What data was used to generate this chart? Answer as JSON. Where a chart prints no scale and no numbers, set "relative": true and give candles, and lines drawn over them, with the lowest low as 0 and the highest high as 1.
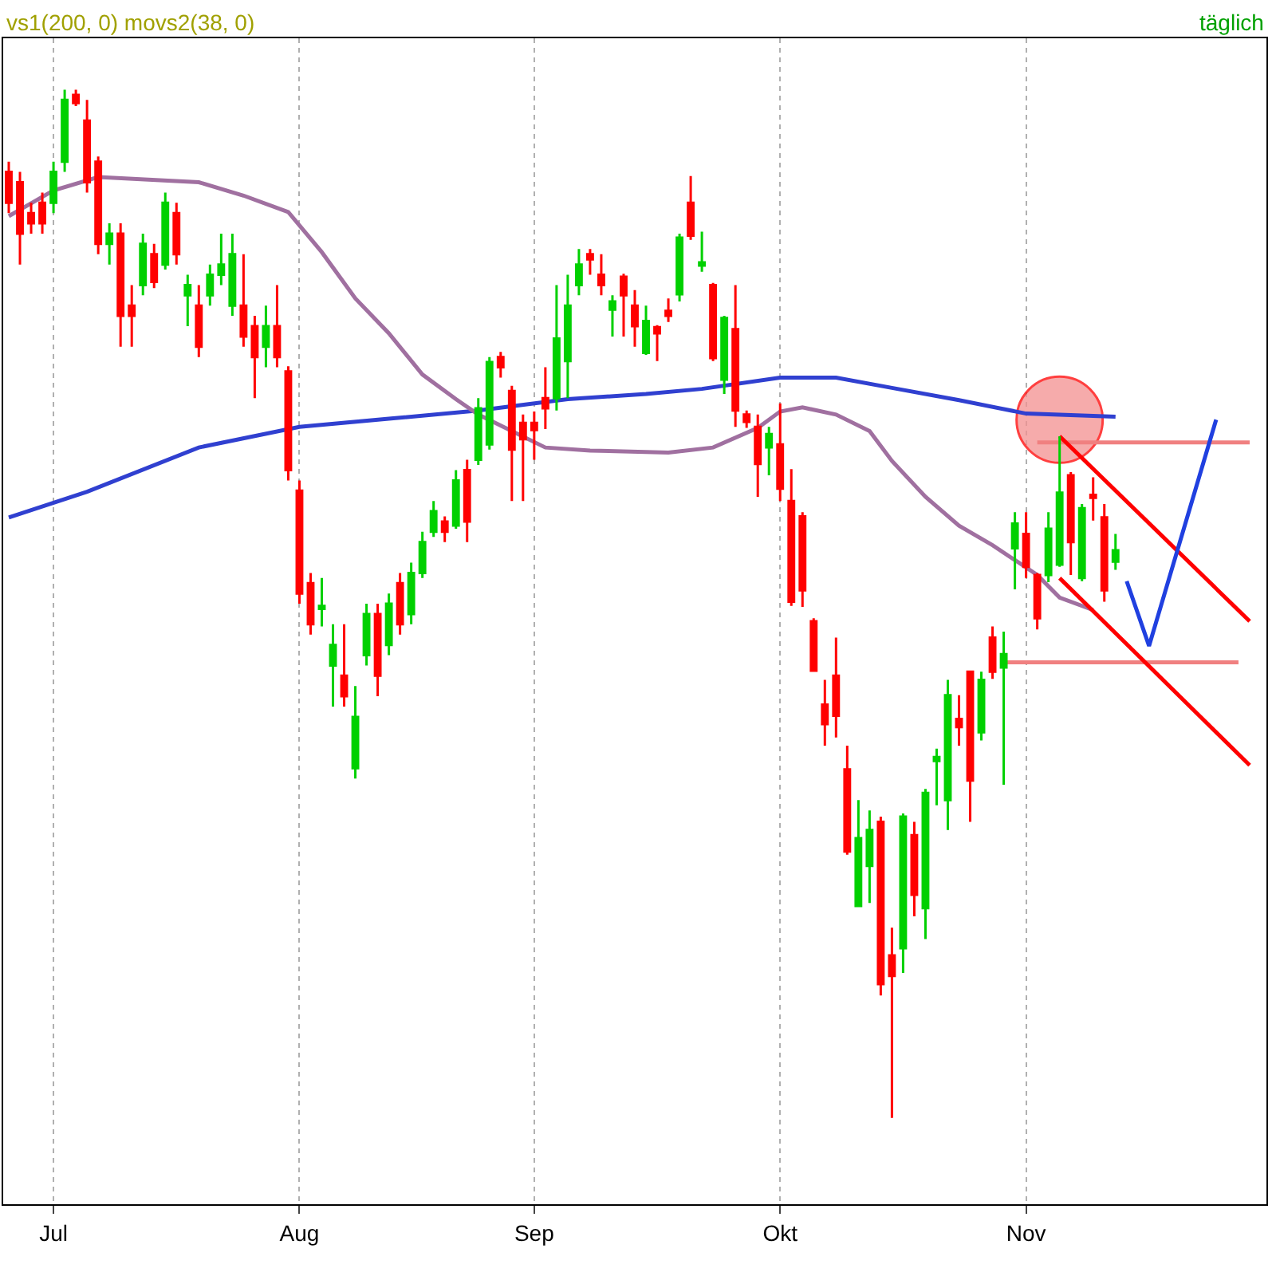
{
  "chart_data": {
    "type": "candlestick",
    "relative": true,
    "annotations": [
      "vs1(200, 0) movs2(38, 0)",
      "täglich"
    ],
    "categories": [
      null,
      null,
      null,
      null,
      "Jul",
      null,
      null,
      null,
      null,
      null,
      null,
      null,
      null,
      null,
      null,
      null,
      null,
      null,
      null,
      null,
      null,
      null,
      null,
      null,
      null,
      null,
      "Aug",
      null,
      null,
      null,
      null,
      null,
      null,
      null,
      null,
      null,
      null,
      null,
      null,
      null,
      null,
      null,
      null,
      null,
      null,
      null,
      null,
      "Sep",
      null,
      null,
      null,
      null,
      null,
      null,
      null,
      null,
      null,
      null,
      null,
      null,
      null,
      null,
      null,
      null,
      null,
      null,
      null,
      null,
      null,
      "Okt",
      null,
      null,
      null,
      null,
      null,
      null,
      null,
      null,
      null,
      null,
      null,
      null,
      null,
      null,
      null,
      null,
      null,
      null,
      null,
      null,
      null,
      "Nov",
      null,
      null,
      null,
      null,
      null,
      null,
      null,
      null,
      null,
      null,
      null,
      null,
      null,
      null,
      null,
      null,
      null,
      null,
      null,
      null,
      null
    ],
    "grid": "x",
    "series": [
      {
        "ohlc": [
          [
            0.92,
            0.93,
            0.88,
            0.89
          ],
          [
            0.91,
            0.92,
            0.83,
            0.86
          ],
          [
            0.88,
            0.89,
            0.86,
            0.87
          ],
          [
            0.89,
            0.9,
            0.86,
            0.87
          ],
          [
            0.89,
            0.93,
            0.88,
            0.92
          ],
          [
            0.93,
            1,
            0.92,
            0.99
          ],
          [
            0.995,
            1,
            0.984,
            0.987
          ],
          [
            0.97,
            0.99,
            0.9,
            0.91
          ],
          [
            0.93,
            0.935,
            0.84,
            0.85
          ],
          [
            0.85,
            0.87,
            0.83,
            0.86
          ],
          [
            0.86,
            0.87,
            0.75,
            0.78
          ],
          [
            0.79,
            0.81,
            0.75,
            0.78
          ],
          [
            0.81,
            0.86,
            0.8,
            0.85
          ],
          [
            0.84,
            0.85,
            0.807,
            0.813
          ],
          [
            0.83,
            0.9,
            0.825,
            0.89
          ],
          [
            0.88,
            0.89,
            0.83,
            0.84
          ],
          [
            0.8,
            0.82,
            0.77,
            0.81
          ],
          [
            0.79,
            0.81,
            0.74,
            0.75
          ],
          [
            0.8,
            0.83,
            0.79,
            0.82
          ],
          [
            0.82,
            0.86,
            0.81,
            0.83
          ],
          [
            0.79,
            0.86,
            0.78,
            0.84
          ],
          [
            0.79,
            0.84,
            0.75,
            0.76
          ],
          [
            0.77,
            0.78,
            0.7,
            0.74
          ],
          [
            0.75,
            0.79,
            0.73,
            0.77
          ],
          [
            0.77,
            0.81,
            0.73,
            0.74
          ],
          [
            0.726,
            0.731,
            0.62,
            0.63
          ],
          [
            0.61,
            0.62,
            0.5,
            0.51
          ],
          [
            0.52,
            0.53,
            0.47,
            0.48
          ],
          [
            0.495,
            0.525,
            0.478,
            0.498
          ],
          [
            0.44,
            0.48,
            0.4,
            0.46
          ],
          [
            0.43,
            0.48,
            0.4,
            0.41
          ],
          [
            0.34,
            0.42,
            0.33,
            0.39
          ],
          [
            0.45,
            0.5,
            0.44,
            0.49
          ],
          [
            0.49,
            0.5,
            0.41,
            0.43
          ],
          [
            0.46,
            0.51,
            0.45,
            0.5
          ],
          [
            0.52,
            0.53,
            0.47,
            0.48
          ],
          [
            0.49,
            0.54,
            0.48,
            0.53
          ],
          [
            0.53,
            0.57,
            0.525,
            0.56
          ],
          [
            0.57,
            0.6,
            0.565,
            0.59
          ],
          [
            0.58,
            0.585,
            0.56,
            0.57
          ],
          [
            0.576,
            0.63,
            0.573,
            0.62
          ],
          [
            0.63,
            0.64,
            0.56,
            0.58
          ],
          [
            0.64,
            0.7,
            0.635,
            0.69
          ],
          [
            0.655,
            0.74,
            0.65,
            0.735
          ],
          [
            0.74,
            0.745,
            0.72,
            0.73
          ],
          [
            0.707,
            0.712,
            0.6,
            0.65
          ],
          [
            0.676,
            0.684,
            0.6,
            0.66
          ],
          [
            0.676,
            0.687,
            0.64,
            0.669
          ],
          [
            0.7,
            0.73,
            0.67,
            0.69
          ],
          [
            0.7,
            0.81,
            0.688,
            0.758
          ],
          [
            0.736,
            0.82,
            0.7,
            0.79
          ],
          [
            0.81,
            0.845,
            0.8,
            0.83
          ],
          [
            0.84,
            0.845,
            0.82,
            0.835
          ],
          [
            0.82,
            0.84,
            0.8,
            0.81
          ],
          [
            0.786,
            0.8,
            0.76,
            0.794
          ],
          [
            0.818,
            0.821,
            0.76,
            0.8
          ],
          [
            0.79,
            0.805,
            0.75,
            0.77
          ],
          [
            0.744,
            0.79,
            0.742,
            0.775
          ],
          [
            0.769,
            0.771,
            0.736,
            0.763
          ],
          [
            0.785,
            0.797,
            0.774,
            0.78
          ],
          [
            0.801,
            0.86,
            0.794,
            0.856
          ],
          [
            0.89,
            0.916,
            0.854,
            0.858
          ],
          [
            0.829,
            0.862,
            0.823,
            0.832
          ],
          [
            0.81,
            0.812,
            0.736,
            0.739
          ],
          [
            0.718,
            0.78,
            0.704,
            0.778
          ],
          [
            0.767,
            0.81,
            0.672,
            0.688
          ],
          [
            0.684,
            0.688,
            0.671,
            0.677
          ],
          [
            0.672,
            0.684,
            0.604,
            0.636
          ],
          [
            0.652,
            0.672,
            0.625,
            0.665
          ],
          [
            0.655,
            0.695,
            0.6,
            0.612
          ],
          [
            0.6,
            0.631,
            0.498,
            0.502
          ],
          [
            0.585,
            0.589,
            0.497,
            0.513
          ],
          [
            0.483,
            0.486,
            0.434,
            0.435
          ],
          [
            0.402,
            0.426,
            0.362,
            0.383
          ],
          [
            0.43,
            0.467,
            0.37,
            0.391
          ],
          [
            0.339,
            0.362,
            0.256,
            0.259
          ],
          [
            0.206,
            0.309,
            0.206,
            0.272
          ],
          [
            0.245,
            0.299,
            0.209,
            0.28
          ],
          [
            0.288,
            0.293,
            0.119,
            0.13
          ],
          [
            0.158,
            0.185,
            0,
            0.138
          ],
          [
            0.165,
            0.296,
            0.141,
            0.293
          ],
          [
            0.275,
            0.288,
            0.196,
            0.217
          ],
          [
            0.204,
            0.32,
            0.174,
            0.316
          ],
          [
            0.347,
            0.359,
            0.304,
            0.351
          ],
          [
            0.309,
            0.426,
            0.28,
            0.411
          ],
          [
            0.388,
            0.411,
            0.362,
            0.38
          ],
          [
            0.434,
            0.435,
            0.288,
            0.328
          ],
          [
            0.375,
            0.434,
            0.367,
            0.426
          ],
          [
            0.467,
            0.478,
            0.427,
            0.434
          ],
          [
            0.438,
            0.473,
            0.324,
            0.451
          ],
          [
            0.554,
            0.589,
            0.514,
            0.578
          ],
          [
            0.568,
            0.589,
            0.525,
            0.536
          ],
          [
            0.528,
            0.53,
            0.475,
            0.486
          ],
          [
            0.528,
            0.589,
            0.521,
            0.573
          ],
          [
            0.538,
            0.663,
            0.536,
            0.608
          ],
          [
            0.625,
            0.628,
            0.528,
            0.56
          ],
          [
            0.525,
            0.597,
            0.522,
            0.593
          ],
          [
            0.606,
            0.623,
            0.581,
            0.603
          ],
          [
            0.584,
            0.597,
            0.502,
            0.513
          ],
          [
            0.541,
            0.568,
            0.533,
            0.552
          ],
          null,
          null,
          null,
          null,
          null,
          null,
          null,
          null,
          null,
          null,
          null,
          null,
          null
        ],
        "colors": [
          "#ff0000",
          "#ff0000",
          "#ff0000",
          "#ff0000",
          "#00d000",
          "#00d000",
          "#ff0000",
          "#ff0000",
          "#ff0000",
          "#00d000",
          "#ff0000",
          "#ff0000",
          "#00d000",
          "#ff0000",
          "#00d000",
          "#ff0000",
          "#00d000",
          "#ff0000",
          "#00d000",
          "#00d000",
          "#00d000",
          "#ff0000",
          "#ff0000",
          "#00d000",
          "#ff0000",
          "#ff0000",
          "#ff0000",
          "#ff0000",
          "#00d000",
          "#00d000",
          "#ff0000",
          "#00d000",
          "#00d000",
          "#ff0000",
          "#00d000",
          "#ff0000",
          "#00d000",
          "#00d000",
          "#00d000",
          "#ff0000",
          "#00d000",
          "#ff0000",
          "#00d000",
          "#00d000",
          "#ff0000",
          "#ff0000",
          "#ff0000",
          "#ff0000",
          "#ff0000",
          "#00d000",
          "#00d000",
          "#00d000",
          "#ff0000",
          "#ff0000",
          "#00d000",
          "#ff0000",
          "#ff0000",
          "#00d000",
          "#ff0000",
          "#ff0000",
          "#00d000",
          "#ff0000",
          "#00d000",
          "#ff0000",
          "#00d000",
          "#ff0000",
          "#ff0000",
          "#ff0000",
          "#00d000",
          "#ff0000",
          "#ff0000",
          "#ff0000",
          "#ff0000",
          "#ff0000",
          "#ff0000",
          "#ff0000",
          "#00d000",
          "#00d000",
          "#ff0000",
          "#ff0000",
          "#00d000",
          "#ff0000",
          "#00d000",
          "#00d000",
          "#00d000",
          "#ff0000",
          "#ff0000",
          "#00d000",
          "#ff0000",
          "#00d000",
          "#00d000",
          "#ff0000",
          "#ff0000",
          "#00d000",
          "#00d000",
          "#ff0000",
          "#00d000",
          "#ff0000",
          "#ff0000",
          "#00d000",
          null,
          null,
          null,
          null,
          null,
          null,
          null,
          null,
          null,
          null,
          null,
          null,
          null
        ]
      },
      {
        "type": "line",
        "color": "#3040d0",
        "values": [
          0.584,
          null,
          null,
          null,
          null,
          null,
          null,
          0.609,
          null,
          null,
          null,
          null,
          null,
          null,
          null,
          null,
          null,
          0.652,
          null,
          null,
          null,
          null,
          null,
          null,
          null,
          null,
          0.672,
          null,
          null,
          null,
          null,
          null,
          null,
          null,
          0.68,
          null,
          null,
          null,
          null,
          null,
          null,
          null,
          0.688,
          null,
          null,
          null,
          null,
          null,
          null,
          null,
          0.699,
          null,
          null,
          null,
          null,
          null,
          null,
          0.704,
          null,
          null,
          null,
          null,
          0.709,
          null,
          null,
          null,
          null,
          null,
          null,
          0.72,
          null,
          null,
          null,
          null,
          0.72,
          null,
          null,
          null,
          null,
          0.71,
          null,
          null,
          null,
          null,
          null,
          0.698,
          null,
          null,
          null,
          null,
          null,
          0.685,
          null,
          null,
          null,
          null,
          null,
          null,
          null,
          0.682,
          null,
          null,
          null,
          null,
          null,
          null,
          null,
          null,
          null,
          null,
          null,
          null,
          null
        ]
      },
      {
        "type": "line",
        "color": "#a070a0",
        "values": [
          0.877,
          null,
          null,
          null,
          0.902,
          null,
          null,
          null,
          0.915,
          null,
          null,
          null,
          null,
          null,
          null,
          null,
          null,
          0.91,
          null,
          null,
          null,
          0.897,
          null,
          null,
          null,
          0.881,
          null,
          null,
          0.842,
          null,
          null,
          0.797,
          null,
          null,
          0.763,
          null,
          null,
          0.723,
          null,
          null,
          0.699,
          null,
          0.684,
          null,
          null,
          0.668,
          null,
          null,
          0.652,
          null,
          null,
          null,
          0.649,
          null,
          null,
          null,
          null,
          null,
          null,
          0.647,
          null,
          null,
          null,
          0.652,
          null,
          null,
          null,
          0.671,
          null,
          0.687,
          null,
          0.691,
          null,
          null,
          0.684,
          null,
          null,
          0.668,
          null,
          0.639,
          null,
          null,
          0.604,
          null,
          null,
          0.576,
          null,
          null,
          0.557,
          null,
          null,
          null,
          0.528,
          null,
          0.506,
          null,
          null,
          0.494,
          null,
          null,
          null,
          null,
          null,
          null,
          null,
          null,
          null,
          null,
          null,
          null,
          null,
          null,
          null
        ]
      },
      {
        "type": "scatter",
        "marker": "circle",
        "color": "#f39090",
        "values": [
          null,
          null,
          null,
          null,
          null,
          null,
          null,
          null,
          null,
          null,
          null,
          null,
          null,
          null,
          null,
          null,
          null,
          null,
          null,
          null,
          null,
          null,
          null,
          null,
          null,
          null,
          null,
          null,
          null,
          null,
          null,
          null,
          null,
          null,
          null,
          null,
          null,
          null,
          null,
          null,
          null,
          null,
          null,
          null,
          null,
          null,
          null,
          null,
          null,
          null,
          null,
          null,
          null,
          null,
          null,
          null,
          null,
          null,
          null,
          null,
          null,
          null,
          null,
          null,
          null,
          null,
          null,
          null,
          null,
          null,
          null,
          null,
          null,
          null,
          null,
          null,
          null,
          null,
          null,
          null,
          null,
          null,
          null,
          null,
          null,
          null,
          null,
          null,
          null,
          null,
          null,
          null,
          null,
          null,
          0.679,
          null,
          null,
          null,
          null,
          null,
          null,
          null,
          null,
          null,
          null,
          null,
          null,
          null,
          null,
          null,
          null,
          null,
          null
        ]
      },
      {
        "type": "line",
        "color": "#f08080",
        "values": [
          null,
          null,
          null,
          null,
          null,
          null,
          null,
          null,
          null,
          null,
          null,
          null,
          null,
          null,
          null,
          null,
          null,
          null,
          null,
          null,
          null,
          null,
          null,
          null,
          null,
          null,
          null,
          null,
          null,
          null,
          null,
          null,
          null,
          null,
          null,
          null,
          null,
          null,
          null,
          null,
          null,
          null,
          null,
          null,
          null,
          null,
          null,
          null,
          null,
          null,
          null,
          null,
          null,
          null,
          null,
          null,
          null,
          null,
          null,
          null,
          null,
          null,
          null,
          null,
          null,
          null,
          null,
          null,
          null,
          null,
          null,
          null,
          null,
          null,
          null,
          null,
          null,
          null,
          null,
          null,
          null,
          null,
          null,
          null,
          null,
          null,
          null,
          null,
          null,
          null,
          null,
          null,
          0.657,
          null,
          null,
          null,
          null,
          null,
          null,
          null,
          null,
          null,
          null,
          null,
          null,
          null,
          null,
          null,
          null,
          null,
          null,
          0.657,
          null
        ]
      },
      {
        "type": "line",
        "color": "#f08080",
        "values": [
          null,
          null,
          null,
          null,
          null,
          null,
          null,
          null,
          null,
          null,
          null,
          null,
          null,
          null,
          null,
          null,
          null,
          null,
          null,
          null,
          null,
          null,
          null,
          null,
          null,
          null,
          null,
          null,
          null,
          null,
          null,
          null,
          null,
          null,
          null,
          null,
          null,
          null,
          null,
          null,
          null,
          null,
          null,
          null,
          null,
          null,
          null,
          null,
          null,
          null,
          null,
          null,
          null,
          null,
          null,
          null,
          null,
          null,
          null,
          null,
          null,
          null,
          null,
          null,
          null,
          null,
          null,
          null,
          null,
          null,
          null,
          null,
          null,
          null,
          null,
          null,
          null,
          null,
          null,
          null,
          null,
          null,
          null,
          null,
          null,
          null,
          null,
          null,
          null,
          0.443,
          null,
          null,
          null,
          null,
          null,
          null,
          null,
          null,
          null,
          null,
          null,
          null,
          null,
          null,
          null,
          null,
          null,
          null,
          null,
          null,
          0.443,
          null,
          null
        ]
      },
      {
        "type": "line",
        "color": "#ff0000",
        "values": [
          null,
          null,
          null,
          null,
          null,
          null,
          null,
          null,
          null,
          null,
          null,
          null,
          null,
          null,
          null,
          null,
          null,
          null,
          null,
          null,
          null,
          null,
          null,
          null,
          null,
          null,
          null,
          null,
          null,
          null,
          null,
          null,
          null,
          null,
          null,
          null,
          null,
          null,
          null,
          null,
          null,
          null,
          null,
          null,
          null,
          null,
          null,
          null,
          null,
          null,
          null,
          null,
          null,
          null,
          null,
          null,
          null,
          null,
          null,
          null,
          null,
          null,
          null,
          null,
          null,
          null,
          null,
          null,
          null,
          null,
          null,
          null,
          null,
          null,
          null,
          null,
          null,
          null,
          null,
          null,
          null,
          null,
          null,
          null,
          null,
          null,
          null,
          null,
          null,
          null,
          null,
          null,
          null,
          null,
          0.663,
          null,
          null,
          null,
          null,
          null,
          null,
          null,
          null,
          null,
          null,
          null,
          null,
          null,
          null,
          null,
          null,
          0.483,
          null
        ]
      },
      {
        "type": "line",
        "color": "#ff0000",
        "values": [
          null,
          null,
          null,
          null,
          null,
          null,
          null,
          null,
          null,
          null,
          null,
          null,
          null,
          null,
          null,
          null,
          null,
          null,
          null,
          null,
          null,
          null,
          null,
          null,
          null,
          null,
          null,
          null,
          null,
          null,
          null,
          null,
          null,
          null,
          null,
          null,
          null,
          null,
          null,
          null,
          null,
          null,
          null,
          null,
          null,
          null,
          null,
          null,
          null,
          null,
          null,
          null,
          null,
          null,
          null,
          null,
          null,
          null,
          null,
          null,
          null,
          null,
          null,
          null,
          null,
          null,
          null,
          null,
          null,
          null,
          null,
          null,
          null,
          null,
          null,
          null,
          null,
          null,
          null,
          null,
          null,
          null,
          null,
          null,
          null,
          null,
          null,
          null,
          null,
          null,
          null,
          null,
          null,
          null,
          0.525,
          null,
          null,
          null,
          null,
          null,
          null,
          null,
          null,
          null,
          null,
          null,
          null,
          null,
          null,
          null,
          null,
          0.343,
          null
        ]
      },
      {
        "type": "line",
        "color": "#2040e0",
        "values": [
          null,
          null,
          null,
          null,
          null,
          null,
          null,
          null,
          null,
          null,
          null,
          null,
          null,
          null,
          null,
          null,
          null,
          null,
          null,
          null,
          null,
          null,
          null,
          null,
          null,
          null,
          null,
          null,
          null,
          null,
          null,
          null,
          null,
          null,
          null,
          null,
          null,
          null,
          null,
          null,
          null,
          null,
          null,
          null,
          null,
          null,
          null,
          null,
          null,
          null,
          null,
          null,
          null,
          null,
          null,
          null,
          null,
          null,
          null,
          null,
          null,
          null,
          null,
          null,
          null,
          null,
          null,
          null,
          null,
          null,
          null,
          null,
          null,
          null,
          null,
          null,
          null,
          null,
          null,
          null,
          null,
          null,
          null,
          null,
          null,
          null,
          null,
          null,
          null,
          null,
          null,
          null,
          null,
          null,
          null,
          null,
          null,
          null,
          null,
          null,
          0.522,
          null,
          0.459,
          null,
          null,
          null,
          null,
          null,
          0.679,
          null,
          null,
          null,
          null
        ]
      }
    ]
  }
}
